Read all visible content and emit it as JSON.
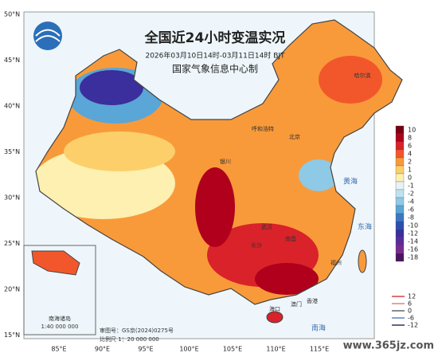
{
  "header": {
    "title": "全国近24小时变温实况",
    "subtitle": "2026年03月10日14时-03月11日14时 BJT",
    "agency": "国家气象信息中心制"
  },
  "map": {
    "lat_labels": [
      "50°N",
      "45°N",
      "40°N",
      "35°N",
      "30°N",
      "25°N",
      "20°N",
      "15°N"
    ],
    "lon_labels": [
      "85°E",
      "90°E",
      "95°E",
      "100°E",
      "105°E",
      "110°E",
      "115°E"
    ],
    "places": [
      "北京",
      "呼和浩特",
      "银川",
      "哈尔滨",
      "武汉",
      "长沙",
      "南昌",
      "福州",
      "香港",
      "澳门",
      "海口",
      "黄海",
      "东海",
      "南海",
      "南海诸岛"
    ],
    "review_no": "审图号：GS京(2024)0275号",
    "scale": "比例尺 1：20 000 000",
    "inset_scale": "1:40 000 000"
  },
  "legend": {
    "items": [
      {
        "label": "10",
        "color": "#7a0010"
      },
      {
        "label": "8",
        "color": "#b0001c"
      },
      {
        "label": "6",
        "color": "#d9222a"
      },
      {
        "label": "4",
        "color": "#f2572c"
      },
      {
        "label": "2",
        "color": "#f99a3a"
      },
      {
        "label": "1",
        "color": "#fccf6a"
      },
      {
        "label": "0",
        "color": "#fdf0b0"
      },
      {
        "label": "-1",
        "color": "#e6f3f7"
      },
      {
        "label": "-2",
        "color": "#bfe2f0"
      },
      {
        "label": "-4",
        "color": "#8ec9e6"
      },
      {
        "label": "-6",
        "color": "#5aa6d6"
      },
      {
        "label": "-8",
        "color": "#3a78c2"
      },
      {
        "label": "-10",
        "color": "#2c4fae"
      },
      {
        "label": "-12",
        "color": "#3a2f9c"
      },
      {
        "label": "-14",
        "color": "#5d2a9a"
      },
      {
        "label": "-16",
        "color": "#7a2a8e"
      },
      {
        "label": "-18",
        "color": "#4a1660"
      }
    ],
    "contours": [
      {
        "label": "12",
        "color": "#d84040"
      },
      {
        "label": "6",
        "color": "#e08080"
      },
      {
        "label": "0",
        "color": "#666666"
      },
      {
        "label": "-6",
        "color": "#6080c0"
      },
      {
        "label": "-12",
        "color": "#303060"
      }
    ]
  },
  "watermark": "www.365jz.com"
}
